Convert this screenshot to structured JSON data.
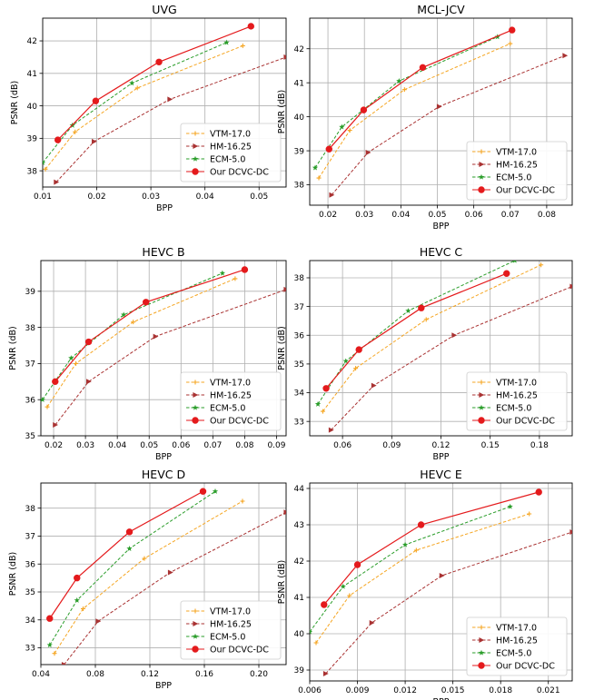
{
  "chart_data": [
    {
      "type": "line",
      "title": "UVG",
      "xlabel": "BPP",
      "ylabel": "PSNR (dB)",
      "xlim": [
        0.01,
        0.055
      ],
      "ylim": [
        37.5,
        42.7
      ],
      "xticks": [
        0.01,
        0.02,
        0.03,
        0.04,
        0.05
      ],
      "xtick_labels": [
        "0.01",
        "0.02",
        "0.03",
        "0.04",
        "0.05"
      ],
      "yticks": [
        38,
        39,
        40,
        41,
        42
      ],
      "ytick_labels": [
        "38",
        "39",
        "40",
        "41",
        "42"
      ],
      "legend_position": "bottom-right",
      "series": [
        {
          "name": "VTM-17.0",
          "color": "#f5a623",
          "marker": "plus",
          "x": [
            0.0105,
            0.016,
            0.0275,
            0.047
          ],
          "y": [
            38.05,
            39.2,
            40.55,
            41.85
          ]
        },
        {
          "name": "HM-16.25",
          "color": "#a93232",
          "marker": "triangle",
          "x": [
            0.0125,
            0.0195,
            0.0335,
            0.055
          ],
          "y": [
            37.65,
            38.9,
            40.2,
            41.5
          ]
        },
        {
          "name": "ECM-5.0",
          "color": "#2a9d2a",
          "marker": "star",
          "x": [
            0.01,
            0.0155,
            0.0265,
            0.044
          ],
          "y": [
            38.25,
            39.4,
            40.7,
            41.95
          ]
        },
        {
          "name": "Our DCVC-DC",
          "color": "#e41a1c",
          "marker": "circle",
          "x": [
            0.0128,
            0.0198,
            0.0315,
            0.0485
          ],
          "y": [
            38.95,
            40.15,
            41.35,
            42.45
          ]
        }
      ]
    },
    {
      "type": "line",
      "title": "MCL-JCV",
      "xlabel": "BPP",
      "ylabel": "PSNR (dB)",
      "xlim": [
        0.015,
        0.087
      ],
      "ylim": [
        37.4,
        42.9
      ],
      "xticks": [
        0.02,
        0.03,
        0.04,
        0.05,
        0.06,
        0.07,
        0.08
      ],
      "xtick_labels": [
        "0.02",
        "0.03",
        "0.04",
        "0.05",
        "0.06",
        "0.07",
        "0.08"
      ],
      "yticks": [
        38,
        39,
        40,
        41,
        42
      ],
      "ytick_labels": [
        "38",
        "39",
        "40",
        "41",
        "42"
      ],
      "legend_position": "bottom-right",
      "series": [
        {
          "name": "VTM-17.0",
          "color": "#f5a623",
          "marker": "plus",
          "x": [
            0.0175,
            0.026,
            0.041,
            0.07
          ],
          "y": [
            38.2,
            39.6,
            40.8,
            42.15
          ]
        },
        {
          "name": "HM-16.25",
          "color": "#a93232",
          "marker": "triangle",
          "x": [
            0.021,
            0.031,
            0.0505,
            0.085
          ],
          "y": [
            37.7,
            38.95,
            40.3,
            41.8
          ]
        },
        {
          "name": "ECM-5.0",
          "color": "#2a9d2a",
          "marker": "star",
          "x": [
            0.0165,
            0.0238,
            0.0395,
            0.0665
          ],
          "y": [
            38.5,
            39.7,
            41.05,
            42.35
          ]
        },
        {
          "name": "Our DCVC-DC",
          "color": "#e41a1c",
          "marker": "circle",
          "x": [
            0.0203,
            0.0298,
            0.046,
            0.0705
          ],
          "y": [
            39.05,
            40.2,
            41.45,
            42.55
          ]
        }
      ]
    },
    {
      "type": "line",
      "title": "HEVC B",
      "xlabel": "BPP",
      "ylabel": "PSNR (dB)",
      "xlim": [
        0.016,
        0.093
      ],
      "ylim": [
        35.0,
        39.85
      ],
      "xticks": [
        0.02,
        0.03,
        0.04,
        0.05,
        0.06,
        0.07,
        0.08,
        0.09
      ],
      "xtick_labels": [
        "0.02",
        "0.03",
        "0.04",
        "0.05",
        "0.06",
        "0.07",
        "0.08",
        "0.09"
      ],
      "yticks": [
        35,
        36,
        37,
        38,
        39
      ],
      "ytick_labels": [
        "35",
        "36",
        "37",
        "38",
        "39"
      ],
      "legend_position": "bottom-right",
      "series": [
        {
          "name": "VTM-17.0",
          "color": "#f5a623",
          "marker": "plus",
          "x": [
            0.018,
            0.027,
            0.045,
            0.077
          ],
          "y": [
            35.8,
            37.0,
            38.15,
            39.35
          ]
        },
        {
          "name": "HM-16.25",
          "color": "#a93232",
          "marker": "triangle",
          "x": [
            0.0205,
            0.031,
            0.052,
            0.093
          ],
          "y": [
            35.3,
            36.5,
            37.75,
            39.05
          ]
        },
        {
          "name": "ECM-5.0",
          "color": "#2a9d2a",
          "marker": "star",
          "x": [
            0.0165,
            0.0255,
            0.042,
            0.073
          ],
          "y": [
            36.0,
            37.15,
            38.35,
            39.5
          ]
        },
        {
          "name": "Our DCVC-DC",
          "color": "#e41a1c",
          "marker": "circle",
          "x": [
            0.0205,
            0.031,
            0.049,
            0.08
          ],
          "y": [
            36.5,
            37.6,
            38.7,
            39.6
          ]
        }
      ]
    },
    {
      "type": "line",
      "title": "HEVC C",
      "xlabel": "BPP",
      "ylabel": "PSNR (dB)",
      "xlim": [
        0.04,
        0.2
      ],
      "ylim": [
        32.5,
        38.6
      ],
      "xticks": [
        0.06,
        0.09,
        0.12,
        0.15,
        0.18
      ],
      "xtick_labels": [
        "0.06",
        "0.09",
        "0.12",
        "0.15",
        "0.18"
      ],
      "yticks": [
        33,
        34,
        35,
        36,
        37,
        38
      ],
      "ytick_labels": [
        "33",
        "34",
        "35",
        "36",
        "37",
        "38"
      ],
      "legend_position": "bottom-right",
      "series": [
        {
          "name": "VTM-17.0",
          "color": "#f5a623",
          "marker": "plus",
          "x": [
            0.048,
            0.068,
            0.111,
            0.181
          ],
          "y": [
            33.35,
            34.85,
            36.55,
            38.45
          ]
        },
        {
          "name": "HM-16.25",
          "color": "#a93232",
          "marker": "triangle",
          "x": [
            0.053,
            0.079,
            0.128,
            0.2
          ],
          "y": [
            32.7,
            34.25,
            36.0,
            37.7
          ]
        },
        {
          "name": "ECM-5.0",
          "color": "#2a9d2a",
          "marker": "star",
          "x": [
            0.045,
            0.062,
            0.1,
            0.165
          ],
          "y": [
            33.6,
            35.1,
            36.85,
            38.6
          ]
        },
        {
          "name": "Our DCVC-DC",
          "color": "#e41a1c",
          "marker": "circle",
          "x": [
            0.05,
            0.07,
            0.108,
            0.16
          ],
          "y": [
            34.15,
            35.5,
            36.95,
            38.15
          ]
        }
      ]
    },
    {
      "type": "line",
      "title": "HEVC D",
      "xlabel": "BPP",
      "ylabel": "PSNR (dB)",
      "xlim": [
        0.04,
        0.22
      ],
      "ylim": [
        32.4,
        38.9
      ],
      "xticks": [
        0.04,
        0.08,
        0.12,
        0.16,
        0.2
      ],
      "xtick_labels": [
        "0.04",
        "0.08",
        "0.12",
        "0.16",
        "0.20"
      ],
      "yticks": [
        33,
        34,
        35,
        36,
        37,
        38
      ],
      "ytick_labels": [
        "33",
        "34",
        "35",
        "36",
        "37",
        "38"
      ],
      "legend_position": "bottom-right",
      "series": [
        {
          "name": "VTM-17.0",
          "color": "#f5a623",
          "marker": "plus",
          "x": [
            0.05,
            0.071,
            0.116,
            0.188
          ],
          "y": [
            32.8,
            34.4,
            36.2,
            38.25
          ]
        },
        {
          "name": "HM-16.25",
          "color": "#a93232",
          "marker": "triangle",
          "x": [
            0.057,
            0.082,
            0.135,
            0.22
          ],
          "y": [
            32.4,
            33.95,
            35.7,
            37.85
          ]
        },
        {
          "name": "ECM-5.0",
          "color": "#2a9d2a",
          "marker": "star",
          "x": [
            0.0465,
            0.0665,
            0.105,
            0.168
          ],
          "y": [
            33.1,
            34.7,
            36.55,
            38.6
          ]
        },
        {
          "name": "Our DCVC-DC",
          "color": "#e41a1c",
          "marker": "circle",
          "x": [
            0.0465,
            0.0665,
            0.105,
            0.159
          ],
          "y": [
            34.05,
            35.5,
            37.15,
            38.6
          ]
        }
      ]
    },
    {
      "type": "line",
      "title": "HEVC E",
      "xlabel": "BPP",
      "ylabel": "PSNR (dB)",
      "xlim": [
        0.006,
        0.0225
      ],
      "ylim": [
        38.7,
        44.15
      ],
      "xticks": [
        0.006,
        0.009,
        0.012,
        0.015,
        0.018,
        0.021
      ],
      "xtick_labels": [
        "0.006",
        "0.009",
        "0.012",
        "0.015",
        "0.018",
        "0.021"
      ],
      "yticks": [
        39,
        40,
        41,
        42,
        43,
        44
      ],
      "ytick_labels": [
        "39",
        "40",
        "41",
        "42",
        "43",
        "44"
      ],
      "legend_position": "bottom-right",
      "series": [
        {
          "name": "VTM-17.0",
          "color": "#f5a623",
          "marker": "plus",
          "x": [
            0.0064,
            0.0085,
            0.0127,
            0.0198
          ],
          "y": [
            39.75,
            41.05,
            42.3,
            43.3
          ]
        },
        {
          "name": "HM-16.25",
          "color": "#a93232",
          "marker": "triangle",
          "x": [
            0.007,
            0.0099,
            0.0143,
            0.0225
          ],
          "y": [
            38.9,
            40.3,
            41.6,
            42.8
          ]
        },
        {
          "name": "ECM-5.0",
          "color": "#2a9d2a",
          "marker": "star",
          "x": [
            0.006,
            0.0081,
            0.012,
            0.0186
          ],
          "y": [
            40.05,
            41.3,
            42.45,
            43.5
          ]
        },
        {
          "name": "Our DCVC-DC",
          "color": "#e41a1c",
          "marker": "circle",
          "x": [
            0.0069,
            0.009,
            0.013,
            0.0204
          ],
          "y": [
            40.8,
            41.9,
            43.0,
            43.9
          ]
        }
      ]
    }
  ]
}
